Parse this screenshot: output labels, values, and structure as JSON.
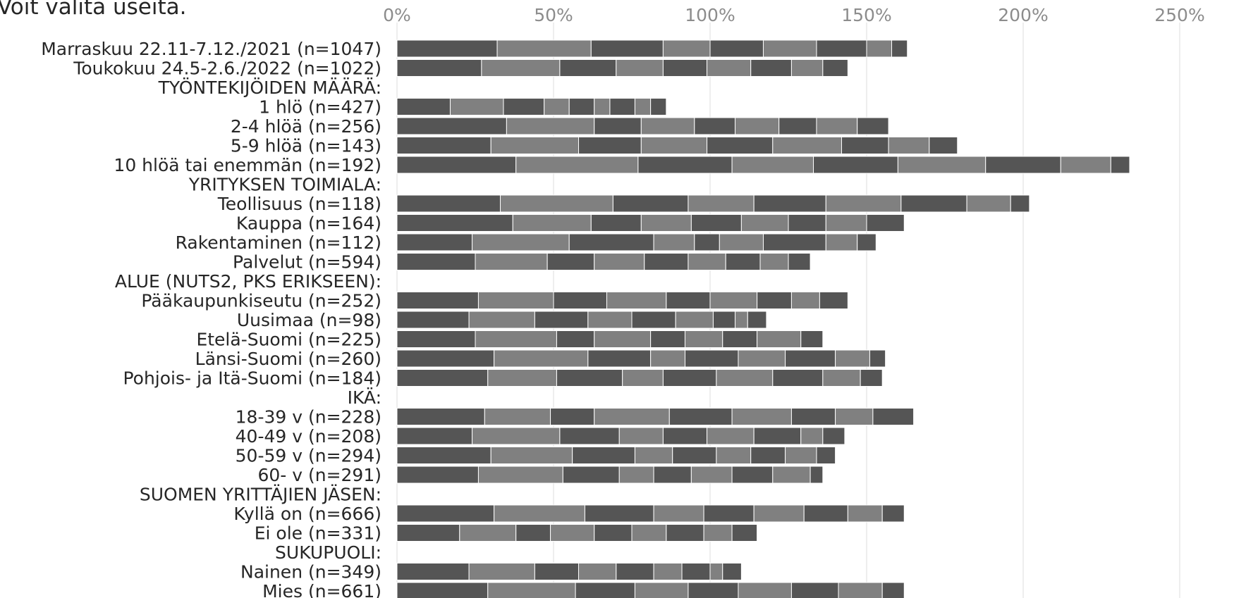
{
  "header": {
    "text": "Voit valita useita."
  },
  "chart_data": {
    "type": "bar",
    "orientation": "horizontal",
    "stacked": true,
    "xlim": [
      0,
      2.7
    ],
    "x_ticks": [
      "0%",
      "50%",
      "100%",
      "150%",
      "200%",
      "250%"
    ],
    "grid": true,
    "legend": "none",
    "colors": [
      "#555555",
      "#808080"
    ],
    "categories": [
      "Marraskuu 22.11-7.12./2021 (n=1047)",
      "Toukokuu 24.5-2.6./2022 (n=1022)",
      "TYÖNTEKIJÖIDEN MÄÄRÄ:",
      "1 hlö (n=427)",
      "2-4 hlöä (n=256)",
      "5-9 hlöä (n=143)",
      "10 hlöä tai enemmän (n=192)",
      "YRITYKSEN TOIMIALA:",
      "Teollisuus (n=118)",
      "Kauppa (n=164)",
      "Rakentaminen (n=112)",
      "Palvelut (n=594)",
      "ALUE (NUTS2, PKS ERIKSEEN):",
      "Pääkaupunkiseutu (n=252)",
      "Uusimaa (n=98)",
      "Etelä-Suomi (n=225)",
      "Länsi-Suomi (n=260)",
      "Pohjois- ja Itä-Suomi (n=184)",
      "IKÄ:",
      "18-39 v (n=228)",
      "40-49 v (n=208)",
      "50-59 v (n=294)",
      "60- v (n=291)",
      "SUOMEN YRITTÄJIEN JÄSEN:",
      "Kyllä on (n=666)",
      "Ei ole (n=331)",
      "SUKUPUOLI:",
      "Nainen (n=349)",
      "Mies (n=661)"
    ],
    "segments": [
      [
        0.32,
        0.3,
        0.23,
        0.15,
        0.17,
        0.17,
        0.16,
        0.08,
        0.05
      ],
      [
        0.27,
        0.25,
        0.18,
        0.15,
        0.14,
        0.14,
        0.13,
        0.1,
        0.08
      ],
      [],
      [
        0.17,
        0.17,
        0.13,
        0.08,
        0.08,
        0.05,
        0.08,
        0.05,
        0.05
      ],
      [
        0.35,
        0.28,
        0.15,
        0.17,
        0.13,
        0.14,
        0.12,
        0.13,
        0.1
      ],
      [
        0.3,
        0.28,
        0.2,
        0.21,
        0.21,
        0.22,
        0.15,
        0.13,
        0.09
      ],
      [
        0.38,
        0.39,
        0.3,
        0.26,
        0.27,
        0.28,
        0.24,
        0.16,
        0.06
      ],
      [],
      [
        0.33,
        0.36,
        0.24,
        0.21,
        0.23,
        0.24,
        0.21,
        0.14,
        0.06
      ],
      [
        0.37,
        0.25,
        0.16,
        0.16,
        0.16,
        0.15,
        0.12,
        0.13,
        0.12
      ],
      [
        0.24,
        0.31,
        0.27,
        0.13,
        0.08,
        0.14,
        0.2,
        0.1,
        0.06
      ],
      [
        0.25,
        0.23,
        0.15,
        0.16,
        0.14,
        0.12,
        0.11,
        0.09,
        0.07
      ],
      [],
      [
        0.26,
        0.24,
        0.17,
        0.19,
        0.14,
        0.15,
        0.11,
        0.09,
        0.09
      ],
      [
        0.23,
        0.21,
        0.17,
        0.14,
        0.14,
        0.12,
        0.07,
        0.04,
        0.06
      ],
      [
        0.25,
        0.26,
        0.12,
        0.18,
        0.11,
        0.12,
        0.11,
        0.14,
        0.07
      ],
      [
        0.31,
        0.3,
        0.2,
        0.11,
        0.17,
        0.15,
        0.16,
        0.11,
        0.05
      ],
      [
        0.29,
        0.22,
        0.21,
        0.13,
        0.17,
        0.18,
        0.16,
        0.12,
        0.07
      ],
      [],
      [
        0.28,
        0.21,
        0.14,
        0.24,
        0.2,
        0.19,
        0.14,
        0.12,
        0.13
      ],
      [
        0.24,
        0.28,
        0.19,
        0.14,
        0.14,
        0.15,
        0.15,
        0.07,
        0.07
      ],
      [
        0.3,
        0.26,
        0.2,
        0.12,
        0.14,
        0.11,
        0.11,
        0.1,
        0.06
      ],
      [
        0.26,
        0.27,
        0.18,
        0.11,
        0.12,
        0.13,
        0.13,
        0.12,
        0.04
      ],
      [],
      [
        0.31,
        0.29,
        0.22,
        0.16,
        0.16,
        0.16,
        0.14,
        0.11,
        0.07
      ],
      [
        0.2,
        0.18,
        0.11,
        0.14,
        0.12,
        0.11,
        0.12,
        0.09,
        0.08
      ],
      [],
      [
        0.23,
        0.21,
        0.14,
        0.12,
        0.12,
        0.09,
        0.09,
        0.04,
        0.06
      ],
      [
        0.29,
        0.28,
        0.19,
        0.17,
        0.16,
        0.17,
        0.15,
        0.14,
        0.07
      ]
    ]
  }
}
